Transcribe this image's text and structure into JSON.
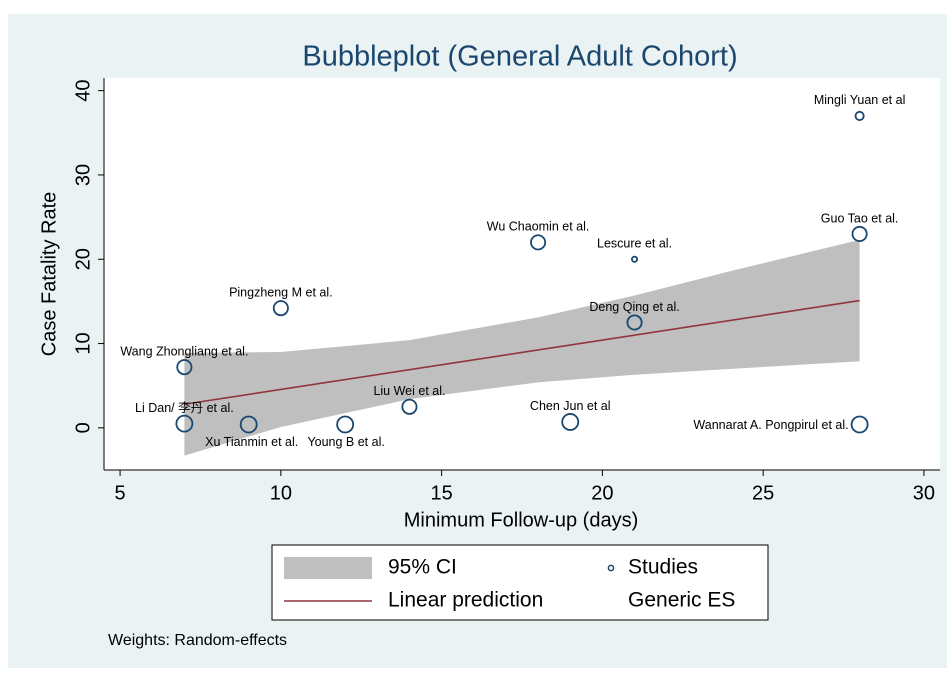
{
  "chart_data": {
    "type": "scatter",
    "title": "Bubbleplot (General Adult Cohort)",
    "x_label": "Minimum Follow-up (days)",
    "y_label": "Case Fatality Rate",
    "note": "Weights: Random-effects",
    "xlim": [
      4.5,
      30.5
    ],
    "xticks": [
      5,
      10,
      15,
      20,
      25,
      30
    ],
    "ylim": [
      -5,
      41.5
    ],
    "yticks": [
      0,
      10,
      20,
      30,
      40
    ],
    "grid": false,
    "legend_extra": "Generic ES",
    "series": [
      {
        "name": "95% CI",
        "type": "band",
        "color": "#bfbfbf",
        "x": [
          7,
          10,
          14,
          18,
          21,
          24,
          28
        ],
        "lower": [
          -3.3,
          0.1,
          3.4,
          5.4,
          6.3,
          7.0,
          7.9
        ],
        "upper": [
          8.9,
          9.0,
          10.4,
          13.1,
          15.7,
          18.6,
          22.3
        ]
      },
      {
        "name": "Linear prediction",
        "type": "line",
        "color": "#90353b",
        "x": [
          7,
          28
        ],
        "values": [
          2.8,
          15.1
        ]
      },
      {
        "name": "Studies",
        "type": "bubble",
        "color": "#1a476f",
        "labels": [
          "Mingli Yuan et al",
          "Guo Tao et al.",
          "Wu Chaomin et al.",
          "Lescure et al.",
          "Pingzheng M et al.",
          "Deng Qing et al.",
          "Wang Zhongliang et al.",
          "Liu Wei et al.",
          "Li Dan/ 李丹 et al.",
          "Xu Tianmin et al.",
          "Young B et al.",
          "Chen Jun et al",
          "Wannarat A. Pongpirul et al."
        ],
        "x": [
          28,
          28,
          18,
          21,
          10,
          21,
          7,
          14,
          7,
          9,
          12,
          19,
          28
        ],
        "values": [
          37,
          23,
          22,
          20,
          14.2,
          12.5,
          7.2,
          2.5,
          0.5,
          0.4,
          0.4,
          0.7,
          0.4
        ],
        "sizes": [
          2.5,
          7.5,
          7.5,
          1,
          7.5,
          7.5,
          7.5,
          7.5,
          9.5,
          9.5,
          9.5,
          9.5,
          9.5
        ]
      }
    ]
  }
}
